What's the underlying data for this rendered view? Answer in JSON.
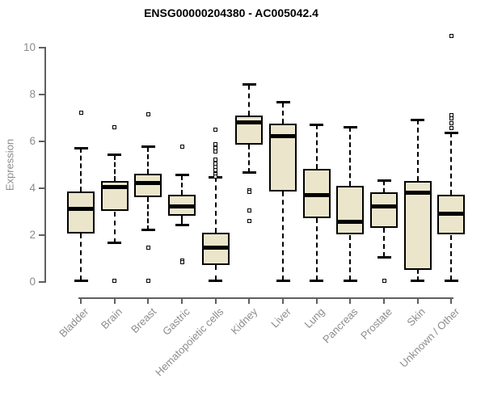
{
  "chart_data": {
    "type": "boxplot",
    "title": "ENSG00000204380 - AC005042.4",
    "ylabel": "Expression",
    "xlabel": "",
    "ylim": [
      0,
      10
    ],
    "yticks": [
      0,
      2,
      4,
      6,
      8,
      10
    ],
    "grid": false,
    "legend": "none",
    "colors": {
      "box_fill": "#EBE6CB",
      "box_border": "#000000",
      "axis": "#5F5F5F",
      "tick_label": "#8C8C8C",
      "title": "#000000"
    },
    "categories": [
      "Bladder",
      "Brain",
      "Breast",
      "Gastric",
      "Hematopoietic cells",
      "Kidney",
      "Liver",
      "Lung",
      "Pancreas",
      "Prostate",
      "Skin",
      "Unknown / Other"
    ],
    "series": [
      {
        "category": "Bladder",
        "whisker_low": 0.05,
        "q1": 2.05,
        "median": 3.1,
        "q3": 3.85,
        "whisker_high": 5.7,
        "outliers": [
          7.2
        ]
      },
      {
        "category": "Brain",
        "whisker_low": 1.65,
        "q1": 3.0,
        "median": 4.05,
        "q3": 4.3,
        "whisker_high": 5.4,
        "outliers": [
          6.6,
          0.05
        ]
      },
      {
        "category": "Breast",
        "whisker_low": 2.2,
        "q1": 3.6,
        "median": 4.2,
        "q3": 4.6,
        "whisker_high": 5.75,
        "outliers": [
          7.15,
          1.45,
          0.05
        ]
      },
      {
        "category": "Gastric",
        "whisker_low": 2.4,
        "q1": 2.8,
        "median": 3.2,
        "q3": 3.7,
        "whisker_high": 4.55,
        "outliers": [
          5.75,
          0.9,
          0.82
        ]
      },
      {
        "category": "Hematopoietic cells",
        "whisker_low": 0.05,
        "q1": 0.7,
        "median": 1.45,
        "q3": 2.1,
        "whisker_high": 4.45,
        "outliers": [
          6.5,
          5.85,
          5.7,
          5.55,
          5.2,
          5.05,
          4.9,
          4.75,
          4.6,
          4.5
        ]
      },
      {
        "category": "Kidney",
        "whisker_low": 4.65,
        "q1": 5.85,
        "median": 6.8,
        "q3": 7.1,
        "whisker_high": 8.4,
        "outliers": [
          3.9,
          3.82,
          3.05,
          2.6
        ]
      },
      {
        "category": "Liver",
        "whisker_low": 0.05,
        "q1": 3.85,
        "median": 6.2,
        "q3": 6.75,
        "whisker_high": 7.65,
        "outliers": []
      },
      {
        "category": "Lung",
        "whisker_low": 0.05,
        "q1": 2.7,
        "median": 3.7,
        "q3": 4.8,
        "whisker_high": 6.7,
        "outliers": []
      },
      {
        "category": "Pancreas",
        "whisker_low": 0.05,
        "q1": 2.0,
        "median": 2.55,
        "q3": 4.1,
        "whisker_high": 6.6,
        "outliers": []
      },
      {
        "category": "Prostate",
        "whisker_low": 1.05,
        "q1": 2.3,
        "median": 3.2,
        "q3": 3.8,
        "whisker_high": 4.3,
        "outliers": [
          0.05
        ]
      },
      {
        "category": "Skin",
        "whisker_low": 0.05,
        "q1": 0.5,
        "median": 3.8,
        "q3": 4.3,
        "whisker_high": 6.9,
        "outliers": []
      },
      {
        "category": "Unknown / Other",
        "whisker_low": 0.05,
        "q1": 2.0,
        "median": 2.9,
        "q3": 3.7,
        "whisker_high": 6.35,
        "outliers": [
          10.5,
          7.1,
          6.95,
          6.75,
          6.55
        ]
      }
    ]
  }
}
